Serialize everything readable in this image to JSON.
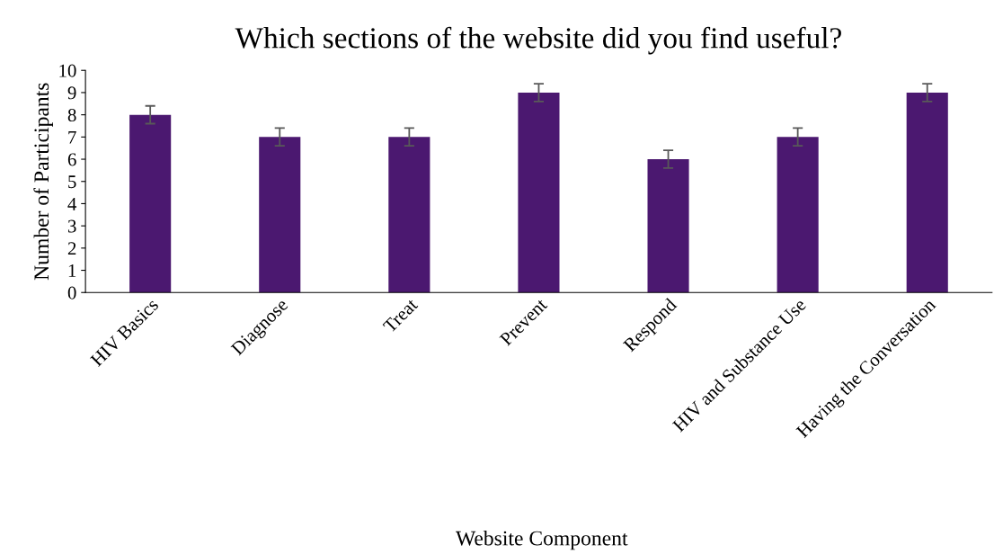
{
  "chart_data": {
    "type": "bar",
    "title": "Which sections of the website did you find useful?",
    "xlabel": "Website Component",
    "ylabel": "Number of Participants",
    "categories": [
      "HIV Basics",
      "Diagnose",
      "Treat",
      "Prevent",
      "Respond",
      "HIV and Substance Use",
      "Having the Conversation"
    ],
    "values": [
      8,
      7,
      7,
      9,
      6,
      7,
      9
    ],
    "errors": [
      0.4,
      0.4,
      0.4,
      0.4,
      0.4,
      0.4,
      0.4
    ],
    "color": "#4b1870",
    "ylim": [
      0,
      10
    ],
    "yticks": [
      0,
      1,
      2,
      3,
      4,
      5,
      6,
      7,
      8,
      9,
      10
    ],
    "grid": false,
    "legend": false
  }
}
